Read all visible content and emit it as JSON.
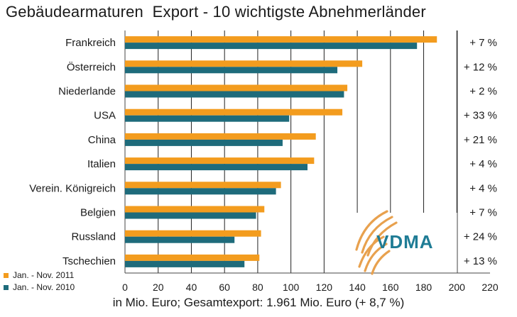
{
  "title": "Gebäudearmaturen  Export - 10 wichtigste Abnehmerländer",
  "footer": "in Mio. Euro; Gesamtexport: 1.961 Mio. Euro (+ 8,7 %)",
  "logo_text": "VDMA",
  "colors": {
    "current": "#F39C1E",
    "previous": "#1E6B7B",
    "logo_orange": "#E8A14E",
    "logo_teal": "#1F7C95"
  },
  "chart_data": {
    "type": "bar",
    "orientation": "horizontal",
    "title": "Gebäudearmaturen  Export - 10 wichtigste Abnehmerländer",
    "categories": [
      "Frankreich",
      "Österreich",
      "Niederlande",
      "USA",
      "China",
      "Italien",
      "Verein. Königreich",
      "Belgien",
      "Russland",
      "Tschechien"
    ],
    "series": [
      {
        "name": "Jan. - Nov. 2011",
        "color": "#F39C1E",
        "values": [
          188,
          143,
          134,
          131,
          115,
          114,
          94,
          84,
          82,
          81
        ]
      },
      {
        "name": "Jan. - Nov. 2010",
        "color": "#1E6B7B",
        "values": [
          176,
          128,
          132,
          99,
          95,
          110,
          91,
          79,
          66,
          72
        ]
      }
    ],
    "changes": [
      "+ 7 %",
      "+ 12 %",
      "+ 2 %",
      "+ 33 %",
      "+ 21 %",
      "+ 4 %",
      "+ 4 %",
      "+ 7 %",
      "+ 24 %",
      "+ 13 %"
    ],
    "xlim": [
      0,
      220
    ],
    "xticks": [
      0,
      20,
      40,
      60,
      80,
      100,
      120,
      140,
      160,
      180,
      200,
      220
    ],
    "xlabel": "in Mio. Euro; Gesamtexport: 1.961 Mio. Euro (+ 8,7 %)",
    "legend_position": "bottom-left",
    "grid": "vertical"
  }
}
